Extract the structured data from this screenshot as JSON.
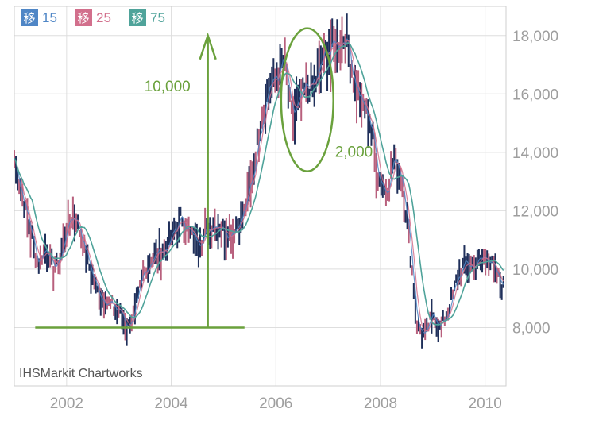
{
  "chart_data": {
    "type": "line",
    "title": "",
    "xlabel": "",
    "ylabel": "",
    "xlim": [
      2001.0,
      2010.4
    ],
    "ylim": [
      6000,
      19000
    ],
    "grid": true,
    "legend_position": "top-left",
    "x_ticks": [
      {
        "value": 2002,
        "label": "2002"
      },
      {
        "value": 2004,
        "label": "2004"
      },
      {
        "value": 2006,
        "label": "2006"
      },
      {
        "value": 2008,
        "label": "2008"
      },
      {
        "value": 2010,
        "label": "2010"
      }
    ],
    "y_ticks": [
      {
        "value": 8000,
        "label": "8,000"
      },
      {
        "value": 10000,
        "label": "10,000"
      },
      {
        "value": 12000,
        "label": "12,000"
      },
      {
        "value": 14000,
        "label": "14,000"
      },
      {
        "value": 16000,
        "label": "16,000"
      },
      {
        "value": 18000,
        "label": "18,000"
      }
    ],
    "series": [
      {
        "name": "移 15",
        "color": "#4f86c6"
      },
      {
        "name": "移 25",
        "color": "#d26f8c"
      },
      {
        "name": "移 75",
        "color": "#4fa39a"
      }
    ],
    "price": {
      "x": [
        2001.0,
        2001.15,
        2001.3,
        2001.45,
        2001.6,
        2001.75,
        2001.9,
        2002.0,
        2002.15,
        2002.3,
        2002.45,
        2002.6,
        2002.75,
        2002.9,
        2003.05,
        2003.15,
        2003.3,
        2003.45,
        2003.6,
        2003.75,
        2003.9,
        2004.05,
        2004.2,
        2004.35,
        2004.5,
        2004.65,
        2004.8,
        2004.95,
        2005.1,
        2005.25,
        2005.4,
        2005.55,
        2005.7,
        2005.85,
        2006.0,
        2006.15,
        2006.3,
        2006.45,
        2006.6,
        2006.75,
        2006.9,
        2007.05,
        2007.2,
        2007.35,
        2007.5,
        2007.65,
        2007.8,
        2007.95,
        2008.1,
        2008.25,
        2008.4,
        2008.55,
        2008.7,
        2008.85,
        2009.0,
        2009.15,
        2009.3,
        2009.45,
        2009.6,
        2009.75,
        2009.9,
        2010.05,
        2010.2,
        2010.35
      ],
      "y": [
        13800,
        12500,
        11400,
        10200,
        10800,
        10000,
        10500,
        11500,
        11900,
        11000,
        10000,
        9200,
        8900,
        8700,
        8500,
        8000,
        8500,
        9800,
        10300,
        10600,
        10700,
        11300,
        11800,
        11200,
        11000,
        11200,
        11600,
        11500,
        11200,
        11500,
        12000,
        13200,
        15000,
        16300,
        16500,
        17200,
        15200,
        15700,
        16300,
        16300,
        17300,
        17600,
        17800,
        18000,
        16400,
        15600,
        15100,
        13300,
        12600,
        13800,
        13300,
        11000,
        8100,
        7700,
        8500,
        8000,
        8600,
        9600,
        10200,
        10100,
        10300,
        10500,
        9800,
        9400
      ]
    },
    "annotations": {
      "rise_label": "10,000",
      "spike_label": "2,000",
      "baseline_value": 8000,
      "baseline_x": [
        2001.4,
        2005.4
      ],
      "arrow_x": 2004.7,
      "arrow_from": 8000,
      "arrow_to": 18000,
      "ellipse_center": [
        2006.6,
        15800
      ],
      "ellipse_x_radius": 0.5,
      "ellipse_y_radius": 2450
    },
    "watermark": "IHSMarkit Chartworks"
  }
}
